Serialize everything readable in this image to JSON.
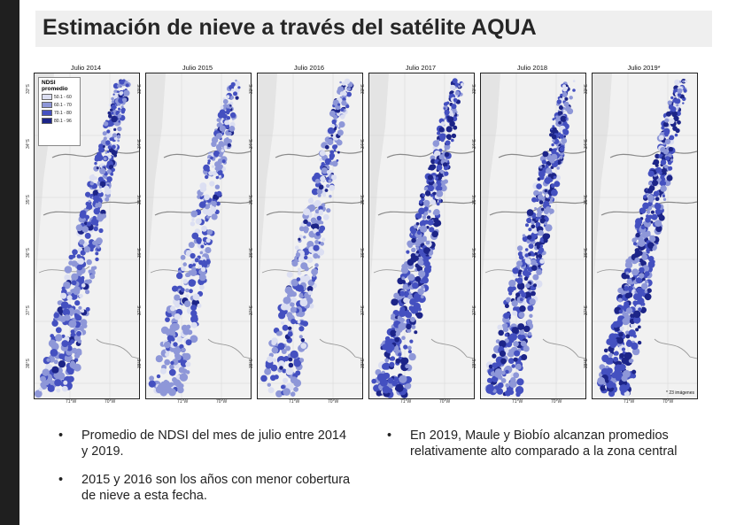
{
  "title": "Estimación de nieve a través del satélite AQUA",
  "panels": [
    {
      "label": "Julio 2014"
    },
    {
      "label": "Julio 2015"
    },
    {
      "label": "Julio 2016"
    },
    {
      "label": "Julio 2017"
    },
    {
      "label": "Julio 2018"
    },
    {
      "label": "Julio 2019*"
    }
  ],
  "legend": {
    "title_line1": "NDSI",
    "title_line2": "promedio",
    "items": [
      {
        "label": "50.1 - 60",
        "color": "#dcdff2"
      },
      {
        "label": "60.1 - 70",
        "color": "#8e97d8"
      },
      {
        "label": "70.1 - 80",
        "color": "#4450c0"
      },
      {
        "label": "80.1 - 96",
        "color": "#1c2488"
      }
    ]
  },
  "axis": {
    "x_ticks": [
      "71°W",
      "70°W"
    ],
    "y_ticks": [
      "33°S",
      "34°S",
      "35°S",
      "36°S",
      "37°S",
      "38°S"
    ]
  },
  "note": "* 23 imágenes",
  "bullets_left": [
    {
      "marker": "•",
      "text": "Promedio de NDSI del mes de julio entre 2014 y 2019."
    },
    {
      "marker": "•",
      "text": "2015 y 2016 son los años con menor cobertura de nieve a esta fecha."
    }
  ],
  "bullets_right": [
    {
      "marker": "•",
      "text": "En 2019, Maule y Biobío alcanzan promedios relativamente alto comparado a la zona central"
    }
  ]
}
